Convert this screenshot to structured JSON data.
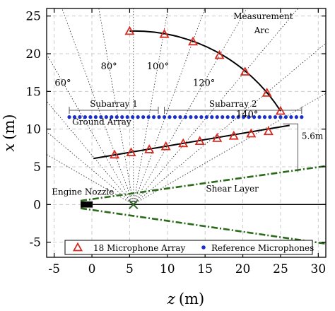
{
  "chart_data": {
    "type": "scatter",
    "xlabel": "z (m)",
    "ylabel": "x (m)",
    "xlabel_var": "z",
    "xlabel_unit": "(m)",
    "ylabel_var": "x",
    "ylabel_unit": "(m)",
    "xlim": [
      -6,
      31
    ],
    "ylim": [
      -7,
      26
    ],
    "x_ticks": [
      -5,
      0,
      5,
      10,
      15,
      20,
      25,
      30
    ],
    "y_ticks": [
      -5,
      0,
      5,
      10,
      15,
      20,
      25
    ],
    "grid": true,
    "origin": [
      5.5,
      0
    ],
    "measurement_arc": {
      "label_line1": "Measurement",
      "label_line2": "Arc",
      "points": [
        [
          5.0,
          23.0
        ],
        [
          9.6,
          22.6
        ],
        [
          13.4,
          21.6
        ],
        [
          16.9,
          19.8
        ],
        [
          20.3,
          17.6
        ],
        [
          23.2,
          14.8
        ],
        [
          25.0,
          12.4
        ]
      ]
    },
    "linear_array": {
      "points": [
        [
          3.0,
          6.6
        ],
        [
          5.2,
          6.9
        ],
        [
          7.6,
          7.3
        ],
        [
          9.8,
          7.7
        ],
        [
          12.1,
          8.1
        ],
        [
          14.3,
          8.4
        ],
        [
          16.6,
          8.8
        ],
        [
          18.8,
          9.1
        ],
        [
          21.1,
          9.4
        ],
        [
          23.4,
          9.7
        ]
      ],
      "line_from": [
        0.2,
        6.1
      ],
      "line_to": [
        26.2,
        10.5
      ]
    },
    "ground_array": {
      "label": "Ground Array",
      "x_value": 11.6,
      "z_start": -3.0,
      "z_end": 27.8,
      "count": 45
    },
    "subarrays": [
      {
        "label": "Subarray 1",
        "z_range": [
          -3.0,
          8.8
        ]
      },
      {
        "label": "Subarray 2",
        "z_range": [
          9.6,
          27.8
        ]
      }
    ],
    "angles": [
      {
        "label": "60°",
        "deg": 60
      },
      {
        "label": "80°",
        "deg": 80
      },
      {
        "label": "100°",
        "deg": 100
      },
      {
        "label": "120°",
        "deg": 120
      },
      {
        "label": "140°",
        "deg": 140
      }
    ],
    "offset_label": "5.6m",
    "shear_layer": {
      "label": "Shear Layer",
      "upper": [
        [
          -1.5,
          0.5
        ],
        [
          31,
          5.1
        ]
      ],
      "lower": [
        [
          -1.5,
          -0.5
        ],
        [
          31,
          -5.2
        ]
      ]
    },
    "engine_nozzle": {
      "label": "Engine Nozzle",
      "z_range": [
        -1.5,
        0.1
      ],
      "height": 0.8
    },
    "legend": {
      "position": "bottom",
      "items": [
        {
          "label": "18 Microphone Array",
          "marker": "red-triangle"
        },
        {
          "label": "Reference Microphones",
          "marker": "blue-dot"
        }
      ]
    }
  },
  "colors": {
    "mic_marker": "#d42a20",
    "reference_mic": "#1830c8",
    "shear_layer": "#2a6a1a",
    "origin_mark": "#2f6a2a",
    "grid": "#cccccc"
  }
}
